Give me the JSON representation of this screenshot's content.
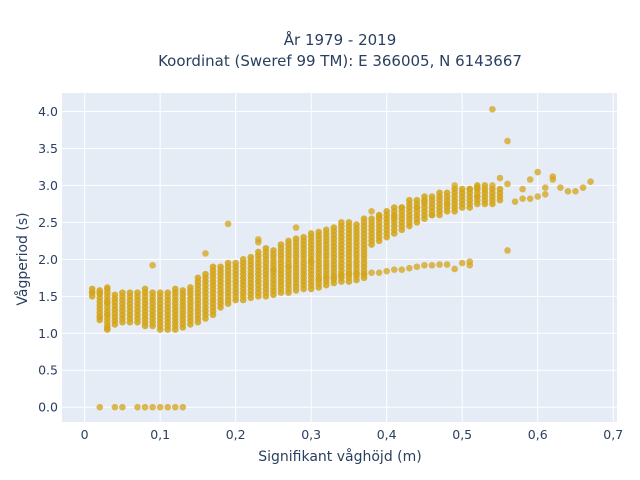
{
  "chart_data": {
    "type": "scatter",
    "title_line1": "År 1979 - 2019",
    "title_line2": "Koordinat (Sweref 99 TM): E 366005, N 6143667",
    "xlabel": "Signifikant våghöjd (m)",
    "ylabel": "Vågperiod (s)",
    "xlim": [
      -0.03,
      0.705
    ],
    "ylim": [
      -0.2,
      4.25
    ],
    "x_ticks": [
      0,
      0.1,
      0.2,
      0.3,
      0.4,
      0.5,
      0.6,
      0.7
    ],
    "x_tick_labels": [
      "0",
      "0,1",
      "0,2",
      "0,3",
      "0,4",
      "0,5",
      "0,6",
      "0,7"
    ],
    "y_ticks": [
      0,
      0.5,
      1,
      1.5,
      2,
      2.5,
      3,
      3.5,
      4
    ],
    "y_tick_labels": [
      "0.0",
      "0.5",
      "1.0",
      "1.5",
      "2.0",
      "2.5",
      "3.0",
      "3.5",
      "4.0"
    ],
    "grid": true,
    "legend": "none",
    "colors": {
      "marker": "#d4a418",
      "plot_bg": "#e5ecf6",
      "grid": "#ffffff",
      "text": "#2a3f5f"
    },
    "series": [
      {
        "columns": [
          [
            0.01,
            1.5,
            1.6
          ],
          [
            0.02,
            1.18,
            1.58
          ],
          [
            0.03,
            1.05,
            1.6
          ],
          [
            0.04,
            1.12,
            1.55
          ],
          [
            0.05,
            1.15,
            1.58
          ],
          [
            0.06,
            1.15,
            1.55
          ],
          [
            0.07,
            1.15,
            1.55
          ],
          [
            0.08,
            1.1,
            1.62
          ],
          [
            0.09,
            1.1,
            1.55
          ],
          [
            0.1,
            1.05,
            1.55
          ],
          [
            0.11,
            1.05,
            1.58
          ],
          [
            0.12,
            1.05,
            1.6
          ],
          [
            0.13,
            1.08,
            1.62
          ],
          [
            0.14,
            1.12,
            1.65
          ],
          [
            0.15,
            1.15,
            1.75
          ],
          [
            0.16,
            1.2,
            1.8
          ],
          [
            0.17,
            1.25,
            1.9
          ],
          [
            0.18,
            1.35,
            1.9
          ],
          [
            0.19,
            1.4,
            1.95
          ],
          [
            0.2,
            1.45,
            1.95
          ],
          [
            0.21,
            1.45,
            2.0
          ],
          [
            0.22,
            1.48,
            2.05
          ],
          [
            0.23,
            1.5,
            2.1
          ],
          [
            0.24,
            1.5,
            2.15
          ],
          [
            0.25,
            1.52,
            2.15
          ],
          [
            0.26,
            1.55,
            2.2
          ],
          [
            0.27,
            1.55,
            2.25
          ],
          [
            0.28,
            1.58,
            2.3
          ],
          [
            0.29,
            1.6,
            2.3
          ],
          [
            0.3,
            1.6,
            2.35
          ],
          [
            0.31,
            1.62,
            2.4
          ],
          [
            0.32,
            1.65,
            2.4
          ],
          [
            0.33,
            1.68,
            2.45
          ],
          [
            0.34,
            1.7,
            2.5
          ],
          [
            0.35,
            1.7,
            2.5
          ],
          [
            0.36,
            1.72,
            2.5
          ],
          [
            0.37,
            1.75,
            2.55
          ],
          [
            0.38,
            2.2,
            2.55
          ],
          [
            0.39,
            2.25,
            2.6
          ],
          [
            0.4,
            2.3,
            2.65
          ],
          [
            0.41,
            2.35,
            2.7
          ],
          [
            0.42,
            2.4,
            2.72
          ],
          [
            0.43,
            2.45,
            2.8
          ],
          [
            0.44,
            2.5,
            2.8
          ],
          [
            0.45,
            2.55,
            2.85
          ],
          [
            0.46,
            2.6,
            2.85
          ],
          [
            0.47,
            2.6,
            2.9
          ],
          [
            0.48,
            2.65,
            2.9
          ],
          [
            0.49,
            2.65,
            2.95
          ],
          [
            0.5,
            2.7,
            2.95
          ],
          [
            0.51,
            2.7,
            2.98
          ],
          [
            0.52,
            2.75,
            3.0
          ],
          [
            0.53,
            2.75,
            3.0
          ],
          [
            0.54,
            2.75,
            2.95
          ],
          [
            0.55,
            2.8,
            2.95
          ]
        ],
        "points": [
          [
            0.02,
            0
          ],
          [
            0.04,
            0
          ],
          [
            0.05,
            0
          ],
          [
            0.07,
            0
          ],
          [
            0.08,
            0
          ],
          [
            0.09,
            0
          ],
          [
            0.1,
            0
          ],
          [
            0.11,
            0
          ],
          [
            0.12,
            0
          ],
          [
            0.13,
            0
          ],
          [
            0.01,
            1.55
          ],
          [
            0.02,
            1.55
          ],
          [
            0.02,
            1.22
          ],
          [
            0.03,
            1.62
          ],
          [
            0.03,
            1.42
          ],
          [
            0.03,
            1.25
          ],
          [
            0.03,
            1.07
          ],
          [
            0.09,
            1.92
          ],
          [
            0.16,
            2.08
          ],
          [
            0.19,
            2.48
          ],
          [
            0.23,
            2.27
          ],
          [
            0.23,
            2.23
          ],
          [
            0.28,
            2.43
          ],
          [
            0.25,
            1.86
          ],
          [
            0.27,
            1.9
          ],
          [
            0.3,
            1.97
          ],
          [
            0.31,
            1.73
          ],
          [
            0.32,
            1.75
          ],
          [
            0.33,
            1.75
          ],
          [
            0.34,
            1.78
          ],
          [
            0.35,
            1.8
          ],
          [
            0.36,
            1.8
          ],
          [
            0.37,
            1.8
          ],
          [
            0.38,
            1.82
          ],
          [
            0.39,
            1.82
          ],
          [
            0.4,
            1.84
          ],
          [
            0.41,
            1.86
          ],
          [
            0.42,
            1.86
          ],
          [
            0.43,
            1.88
          ],
          [
            0.44,
            1.9
          ],
          [
            0.45,
            1.92
          ],
          [
            0.46,
            1.92
          ],
          [
            0.47,
            1.93
          ],
          [
            0.48,
            1.93
          ],
          [
            0.49,
            1.87
          ],
          [
            0.5,
            1.95
          ],
          [
            0.51,
            1.97
          ],
          [
            0.51,
            1.92
          ],
          [
            0.38,
            2.65
          ],
          [
            0.39,
            2.58
          ],
          [
            0.41,
            2.58
          ],
          [
            0.42,
            2.7
          ],
          [
            0.44,
            2.7
          ],
          [
            0.45,
            2.78
          ],
          [
            0.46,
            2.6
          ],
          [
            0.48,
            2.75
          ],
          [
            0.49,
            3.0
          ],
          [
            0.51,
            2.95
          ],
          [
            0.52,
            2.85
          ],
          [
            0.52,
            2.97
          ],
          [
            0.54,
            4.03
          ],
          [
            0.54,
            3.0
          ],
          [
            0.55,
            3.1
          ],
          [
            0.56,
            3.6
          ],
          [
            0.56,
            2.12
          ],
          [
            0.56,
            3.02
          ],
          [
            0.57,
            2.78
          ],
          [
            0.58,
            2.82
          ],
          [
            0.58,
            2.95
          ],
          [
            0.59,
            2.82
          ],
          [
            0.59,
            3.08
          ],
          [
            0.6,
            2.85
          ],
          [
            0.6,
            3.18
          ],
          [
            0.61,
            2.88
          ],
          [
            0.61,
            2.97
          ],
          [
            0.62,
            3.12
          ],
          [
            0.62,
            3.08
          ],
          [
            0.63,
            2.97
          ],
          [
            0.64,
            2.92
          ],
          [
            0.65,
            2.92
          ],
          [
            0.66,
            2.97
          ],
          [
            0.67,
            3.05
          ]
        ]
      }
    ]
  }
}
